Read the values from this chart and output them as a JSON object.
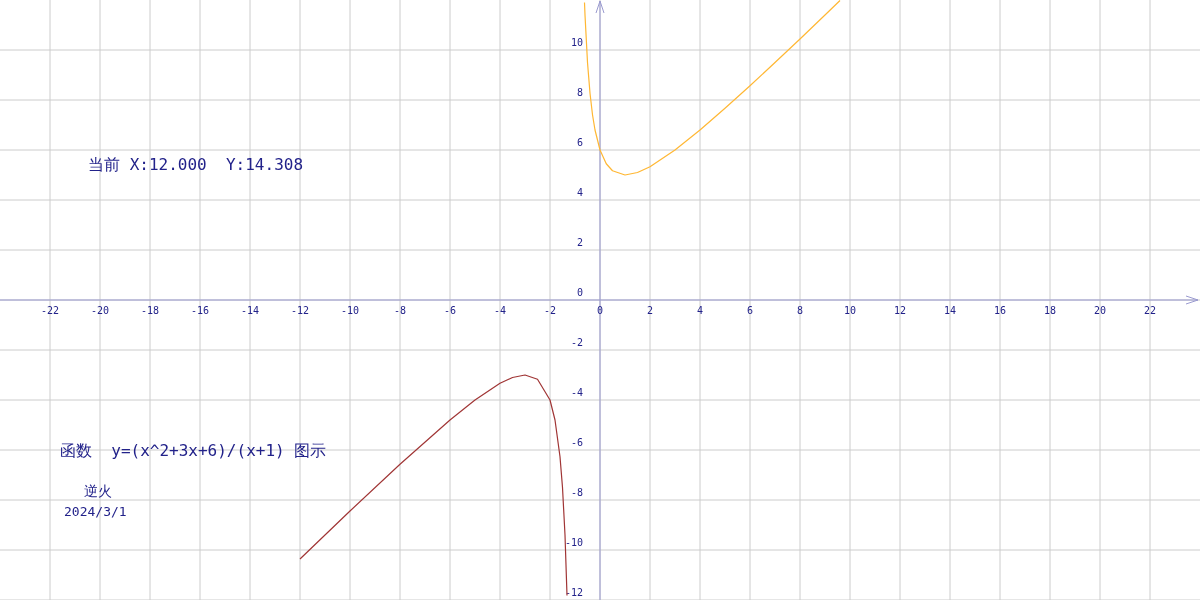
{
  "chart_data": {
    "type": "line",
    "title": "函数  y=(x^2+3x+6)/(x+1) 图示",
    "annotations": [
      "当前 X:12.000  Y:14.308",
      "逆火",
      "2024/3/1"
    ],
    "series": [
      {
        "color": "#ffb733",
        "x": [
          -0.62,
          -0.6,
          -0.5,
          -0.4,
          -0.3,
          -0.2,
          0,
          0.25,
          0.5,
          1,
          1.5,
          2,
          3,
          4,
          5,
          6,
          7,
          8,
          9,
          9.6
        ],
        "values": [
          11.9,
          11.4,
          9.5,
          8.27,
          7.41,
          6.8,
          6,
          5.45,
          5.17,
          5,
          5.1,
          5.33,
          6,
          6.8,
          7.67,
          8.57,
          9.5,
          10.44,
          11.4,
          11.98
        ]
      },
      {
        "color": "#a03535",
        "x": [
          -12,
          -10,
          -8,
          -6,
          -5,
          -4,
          -3.5,
          -3,
          -2.5,
          -2,
          -1.8,
          -1.6,
          -1.5,
          -1.4,
          -1.32
        ],
        "values": [
          -10.36,
          -8.44,
          -6.57,
          -4.8,
          -4,
          -3.33,
          -3.1,
          -3,
          -3.17,
          -4,
          -4.8,
          -6.27,
          -7.5,
          -9.4,
          -11.82
        ]
      }
    ],
    "xlim": [
      -24,
      24
    ],
    "ylim": [
      -12,
      12
    ],
    "xticks": [
      -22,
      -20,
      -18,
      -16,
      -14,
      -12,
      -10,
      -8,
      -6,
      -4,
      -2,
      0,
      2,
      4,
      6,
      8,
      10,
      12,
      14,
      16,
      18,
      20,
      22
    ],
    "yticks": [
      -12,
      -10,
      -8,
      -6,
      -4,
      -2,
      0,
      2,
      4,
      6,
      8,
      10
    ],
    "grid": true
  }
}
